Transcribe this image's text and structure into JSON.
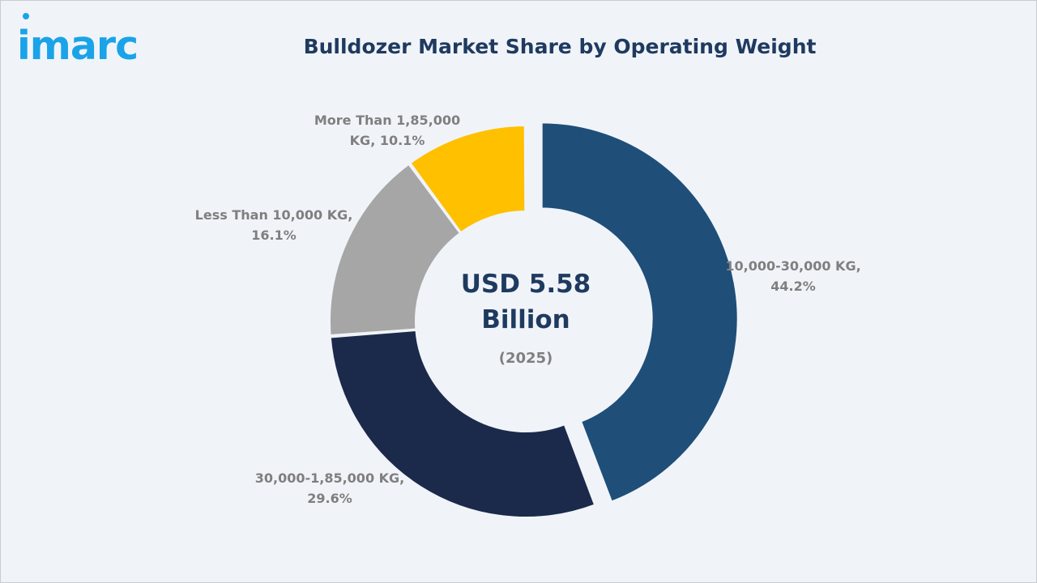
{
  "brand": {
    "logo_text": "imarc",
    "logo_color": "#1aa3e8"
  },
  "chart_data": {
    "type": "pie",
    "title": "Bulldozer Market Share by Operating Weight",
    "center_value_lines": [
      "USD 5.58",
      "Billion"
    ],
    "center_year": "(2025)",
    "unit": "%",
    "slices": [
      {
        "label_lines": [
          "10,000-30,000 KG,",
          "44.2%"
        ],
        "category": "10,000-30,000 KG",
        "value": 44.2,
        "color": "#1f4e79",
        "exploded": true
      },
      {
        "label_lines": [
          "30,000-1,85,000 KG,",
          "29.6%"
        ],
        "category": "30,000-1,85,000 KG",
        "value": 29.6,
        "color": "#1b2a4a",
        "exploded": false
      },
      {
        "label_lines": [
          "Less Than 10,000 KG,",
          "16.1%"
        ],
        "category": "Less Than 10,000 KG",
        "value": 16.1,
        "color": "#a6a6a6",
        "exploded": false
      },
      {
        "label_lines": [
          "More Than 1,85,000",
          "KG, 10.1%"
        ],
        "category": "More Than 1,85,000 KG",
        "value": 10.1,
        "color": "#ffc000",
        "exploded": false
      }
    ],
    "colors": {
      "title": "#1f3a5f",
      "labels": "#7f7f7f",
      "background": "#f0f4f9"
    }
  }
}
